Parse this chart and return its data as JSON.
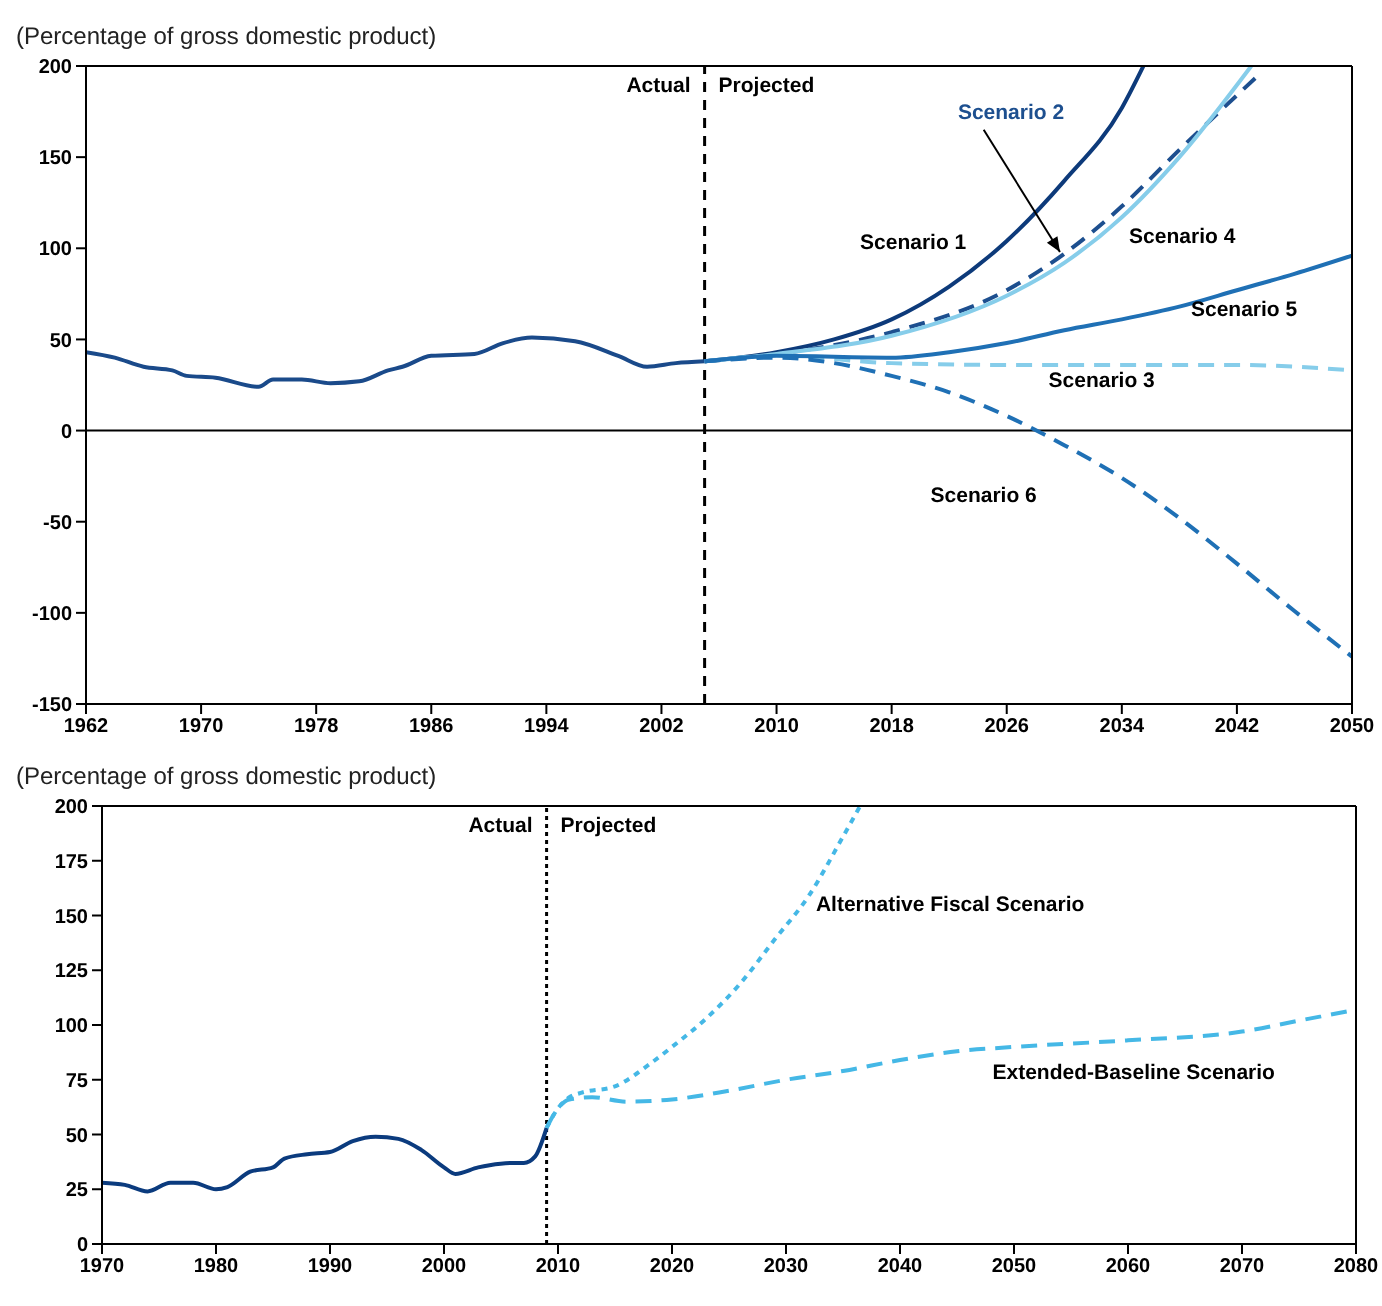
{
  "chart_data": [
    {
      "type": "line",
      "ylabel": "(Percentage of gross domestic product)",
      "xlim": [
        1962,
        2050
      ],
      "xticks": [
        1962,
        1970,
        1978,
        1986,
        1994,
        2002,
        2010,
        2018,
        2026,
        2034,
        2042,
        2050
      ],
      "ylim": [
        -150,
        200
      ],
      "yticks": [
        -150,
        -100,
        -50,
        0,
        50,
        100,
        150,
        200
      ],
      "ref_lines": [
        {
          "axis": "x",
          "value": 2005,
          "color": "#000000",
          "line_style": "dashed"
        },
        {
          "axis": "y",
          "value": 0,
          "color": "#000000",
          "line_style": "solid"
        }
      ],
      "annotations": [
        "Actual",
        "Projected"
      ],
      "series": [
        {
          "color": "#1a4a8a",
          "line_style": "solid",
          "x": [
            1962,
            1964,
            1966,
            1968,
            1969,
            1971,
            1974,
            1975,
            1977,
            1979,
            1981,
            1983,
            1984,
            1986,
            1989,
            1991,
            1993,
            1996,
            1999,
            2001,
            2003,
            2005
          ],
          "values": [
            43,
            40,
            35,
            33,
            30,
            29,
            24,
            28,
            28,
            26,
            27,
            33,
            35,
            41,
            42,
            48,
            51,
            49,
            41,
            35,
            37,
            38
          ]
        },
        {
          "name": "Scenario 1",
          "color": "#0d3a7a",
          "line_style": "solid",
          "x": [
            2005,
            2010,
            2014,
            2018,
            2022,
            2026,
            2030,
            2034,
            2035.5
          ],
          "values": [
            38,
            43,
            50,
            61,
            79,
            104,
            137,
            177,
            200
          ]
        },
        {
          "name": "Scenario 2",
          "color": "#1d4f8f",
          "line_style": "dashed",
          "x": [
            2005,
            2010,
            2018,
            2026,
            2030,
            2034,
            2038,
            2043.5
          ],
          "values": [
            38,
            42,
            54,
            77,
            97,
            123,
            154,
            195
          ]
        },
        {
          "name": "Scenario 3",
          "color": "#86cdea",
          "line_style": "dashed",
          "x": [
            2005,
            2010,
            2018,
            2026,
            2034,
            2042,
            2050
          ],
          "values": [
            38,
            41,
            37,
            36,
            36,
            36,
            33
          ]
        },
        {
          "name": "Scenario 4",
          "color": "#86cdea",
          "line_style": "solid",
          "x": [
            2005,
            2010,
            2018,
            2026,
            2030,
            2034,
            2038,
            2043
          ],
          "values": [
            38,
            42,
            52,
            74,
            92,
            117,
            150,
            200
          ]
        },
        {
          "name": "Scenario 5",
          "color": "#1f70b5",
          "line_style": "solid",
          "x": [
            2005,
            2010,
            2018,
            2022,
            2026,
            2030,
            2034,
            2038,
            2042,
            2046,
            2050
          ],
          "values": [
            38,
            41,
            40,
            43,
            48,
            55,
            61,
            68,
            77,
            86,
            96
          ]
        },
        {
          "name": "Scenario 6",
          "color": "#1f70b5",
          "line_style": "dashed",
          "x": [
            2005,
            2010,
            2014,
            2018,
            2022,
            2026,
            2030,
            2034,
            2038,
            2042,
            2046,
            2050
          ],
          "values": [
            38,
            40,
            37,
            30,
            21,
            8,
            -8,
            -26,
            -48,
            -73,
            -99,
            -124
          ]
        }
      ]
    },
    {
      "type": "line",
      "ylabel": "(Percentage of gross domestic product)",
      "xlim": [
        1970,
        2080
      ],
      "xticks": [
        1970,
        1980,
        1990,
        2000,
        2010,
        2020,
        2030,
        2040,
        2050,
        2060,
        2070,
        2080
      ],
      "ylim": [
        0,
        200
      ],
      "yticks": [
        0,
        25,
        50,
        75,
        100,
        125,
        150,
        175,
        200
      ],
      "ref_lines": [
        {
          "axis": "x",
          "value": 2009,
          "color": "#000000",
          "line_style": "dotted"
        }
      ],
      "annotations": [
        "Actual",
        "Projected"
      ],
      "series": [
        {
          "color": "#0b3b7e",
          "line_style": "solid",
          "x": [
            1970,
            1972,
            1974,
            1976,
            1978,
            1980,
            1981,
            1983,
            1985,
            1986,
            1988,
            1990,
            1992,
            1994,
            1996,
            1998,
            2000,
            2001,
            2003,
            2004,
            2006,
            2007,
            2008,
            2009
          ],
          "values": [
            28,
            27,
            24,
            28,
            28,
            25,
            26,
            33,
            35,
            39,
            41,
            42,
            47,
            49,
            48,
            43,
            35,
            32,
            35,
            36,
            37,
            37,
            40,
            53
          ]
        },
        {
          "name": "Alternative Fiscal Scenario",
          "color": "#45b8e6",
          "line_style": "dotted",
          "x": [
            2009,
            2010,
            2011,
            2012,
            2015,
            2018,
            2020,
            2023,
            2026,
            2029,
            2032,
            2035,
            2036.5
          ],
          "values": [
            53,
            62,
            67,
            69,
            72,
            82,
            90,
            103,
            119,
            139,
            159,
            186,
            200
          ]
        },
        {
          "name": "Extended-Baseline Scenario",
          "color": "#45b8e6",
          "line_style": "dashed",
          "x": [
            2009,
            2010,
            2011,
            2013,
            2016,
            2020,
            2025,
            2030,
            2035,
            2040,
            2045,
            2050,
            2060,
            2070,
            2075,
            2080
          ],
          "values": [
            53,
            62,
            66,
            67,
            65,
            66,
            70,
            75,
            79,
            84,
            88,
            90,
            93,
            97,
            102,
            107
          ]
        }
      ]
    }
  ]
}
